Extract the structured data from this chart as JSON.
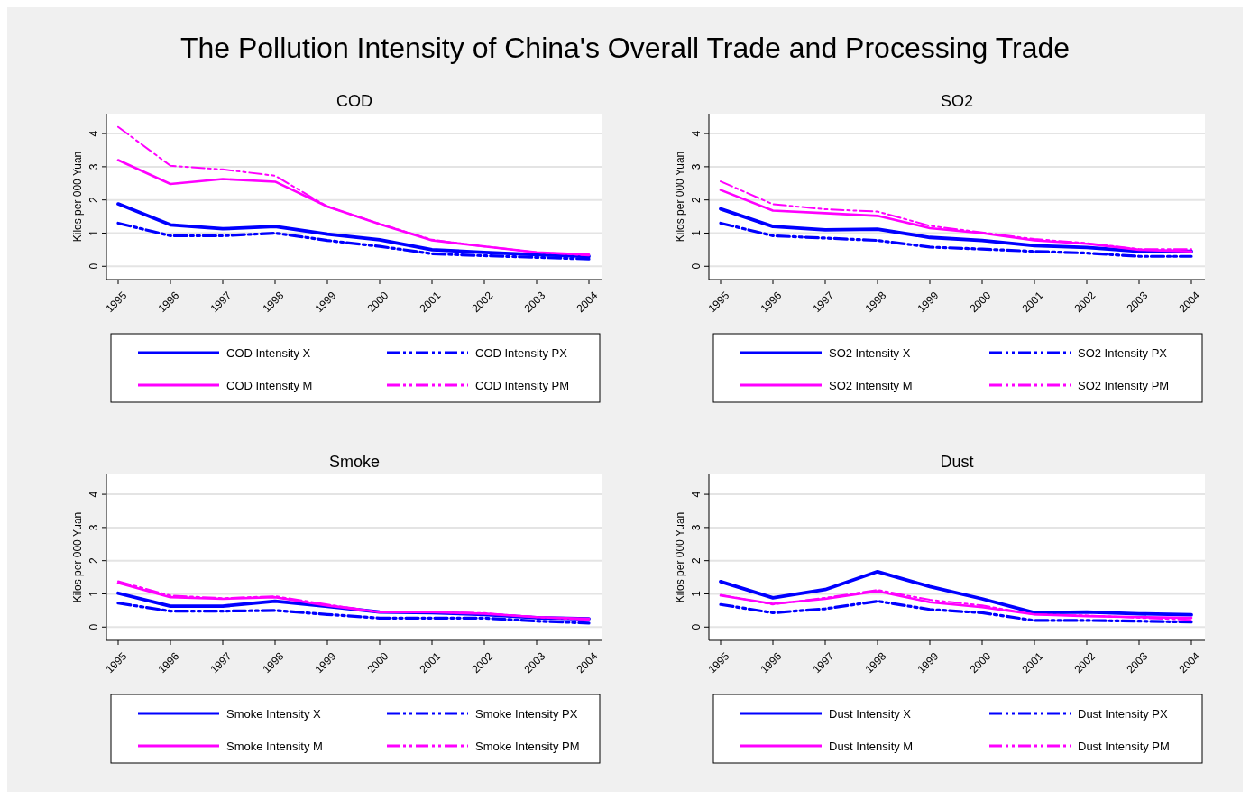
{
  "chart_data": [
    {
      "type": "line",
      "title": "COD",
      "ylabel": "Kilos per 000 Yuan",
      "annotations": [
        "The Pollution Intensity of China's Overall Trade and Processing Trade"
      ],
      "categories": [
        "1995",
        "1996",
        "1997",
        "1998",
        "1999",
        "2000",
        "2001",
        "2002",
        "2003",
        "2004"
      ],
      "ylim": [
        -0.4,
        4.6
      ],
      "yticks": [
        0,
        1,
        2,
        3,
        4
      ],
      "grid": "y",
      "legend": "bottom",
      "series": [
        {
          "name": "COD Intensity X",
          "color": "#0000ff",
          "line_style": "solid",
          "values": [
            1.88,
            1.25,
            1.13,
            1.2,
            0.97,
            0.8,
            0.5,
            0.42,
            0.35,
            0.3
          ]
        },
        {
          "name": "COD Intensity PX",
          "color": "#0000ff",
          "line_style": "dashed",
          "values": [
            1.3,
            0.92,
            0.92,
            1.0,
            0.78,
            0.6,
            0.38,
            0.32,
            0.27,
            0.22
          ]
        },
        {
          "name": "COD Intensity M",
          "color": "#ff00ff",
          "line_style": "solid",
          "values": [
            3.2,
            2.48,
            2.63,
            2.55,
            1.8,
            1.27,
            0.78,
            0.6,
            0.42,
            0.35
          ]
        },
        {
          "name": "COD Intensity PM",
          "color": "#ff00ff",
          "line_style": "dashed",
          "values": [
            4.2,
            3.03,
            2.92,
            2.73,
            1.8,
            1.28,
            0.8,
            0.6,
            0.42,
            0.33
          ]
        }
      ]
    },
    {
      "type": "line",
      "title": "SO2",
      "ylabel": "Kilos per 000 Yuan",
      "categories": [
        "1995",
        "1996",
        "1997",
        "1998",
        "1999",
        "2000",
        "2001",
        "2002",
        "2003",
        "2004"
      ],
      "ylim": [
        -0.4,
        4.6
      ],
      "yticks": [
        0,
        1,
        2,
        3,
        4
      ],
      "grid": "y",
      "legend": "bottom",
      "series": [
        {
          "name": "SO2 Intensity X",
          "color": "#0000ff",
          "line_style": "solid",
          "values": [
            1.73,
            1.2,
            1.1,
            1.12,
            0.87,
            0.78,
            0.62,
            0.57,
            0.45,
            0.45
          ]
        },
        {
          "name": "SO2 Intensity PX",
          "color": "#0000ff",
          "line_style": "dashed",
          "values": [
            1.3,
            0.92,
            0.85,
            0.78,
            0.58,
            0.52,
            0.45,
            0.4,
            0.3,
            0.3
          ]
        },
        {
          "name": "SO2 Intensity M",
          "color": "#ff00ff",
          "line_style": "solid",
          "values": [
            2.3,
            1.68,
            1.6,
            1.52,
            1.15,
            1.0,
            0.78,
            0.68,
            0.5,
            0.45
          ]
        },
        {
          "name": "SO2 Intensity PM",
          "color": "#ff00ff",
          "line_style": "dashed",
          "values": [
            2.56,
            1.87,
            1.72,
            1.65,
            1.22,
            1.02,
            0.82,
            0.7,
            0.52,
            0.52
          ]
        }
      ]
    },
    {
      "type": "line",
      "title": "Smoke",
      "ylabel": "Kilos per 000 Yuan",
      "categories": [
        "1995",
        "1996",
        "1997",
        "1998",
        "1999",
        "2000",
        "2001",
        "2002",
        "2003",
        "2004"
      ],
      "ylim": [
        -0.4,
        4.6
      ],
      "yticks": [
        0,
        1,
        2,
        3,
        4
      ],
      "grid": "y",
      "legend": "bottom",
      "series": [
        {
          "name": "Smoke Intensity X",
          "color": "#0000ff",
          "line_style": "solid",
          "values": [
            1.02,
            0.63,
            0.63,
            0.78,
            0.62,
            0.45,
            0.43,
            0.38,
            0.28,
            0.25
          ]
        },
        {
          "name": "Smoke Intensity PX",
          "color": "#0000ff",
          "line_style": "dashed",
          "values": [
            0.72,
            0.48,
            0.48,
            0.5,
            0.38,
            0.27,
            0.27,
            0.27,
            0.18,
            0.12
          ]
        },
        {
          "name": "Smoke Intensity M",
          "color": "#ff00ff",
          "line_style": "solid",
          "values": [
            1.33,
            0.9,
            0.85,
            0.9,
            0.65,
            0.45,
            0.45,
            0.4,
            0.3,
            0.25
          ]
        },
        {
          "name": "Smoke Intensity PM",
          "color": "#ff00ff",
          "line_style": "dashed",
          "values": [
            1.38,
            0.95,
            0.87,
            0.93,
            0.68,
            0.45,
            0.45,
            0.42,
            0.3,
            0.22
          ]
        }
      ]
    },
    {
      "type": "line",
      "title": "Dust",
      "ylabel": "Kilos per 000 Yuan",
      "categories": [
        "1995",
        "1996",
        "1997",
        "1998",
        "1999",
        "2000",
        "2001",
        "2002",
        "2003",
        "2004"
      ],
      "ylim": [
        -0.4,
        4.6
      ],
      "yticks": [
        0,
        1,
        2,
        3,
        4
      ],
      "grid": "y",
      "legend": "bottom",
      "series": [
        {
          "name": "Dust Intensity X",
          "color": "#0000ff",
          "line_style": "solid",
          "values": [
            1.37,
            0.88,
            1.13,
            1.67,
            1.22,
            0.85,
            0.43,
            0.45,
            0.4,
            0.37
          ]
        },
        {
          "name": "Dust Intensity PX",
          "color": "#0000ff",
          "line_style": "dashed",
          "values": [
            0.68,
            0.43,
            0.55,
            0.78,
            0.53,
            0.43,
            0.2,
            0.2,
            0.18,
            0.15
          ]
        },
        {
          "name": "Dust Intensity M",
          "color": "#ff00ff",
          "line_style": "solid",
          "values": [
            0.95,
            0.7,
            0.85,
            1.08,
            0.75,
            0.6,
            0.38,
            0.33,
            0.3,
            0.28
          ]
        },
        {
          "name": "Dust Intensity PM",
          "color": "#ff00ff",
          "line_style": "dashed",
          "values": [
            0.97,
            0.68,
            0.88,
            1.12,
            0.82,
            0.65,
            0.38,
            0.35,
            0.28,
            0.22
          ]
        }
      ]
    }
  ]
}
